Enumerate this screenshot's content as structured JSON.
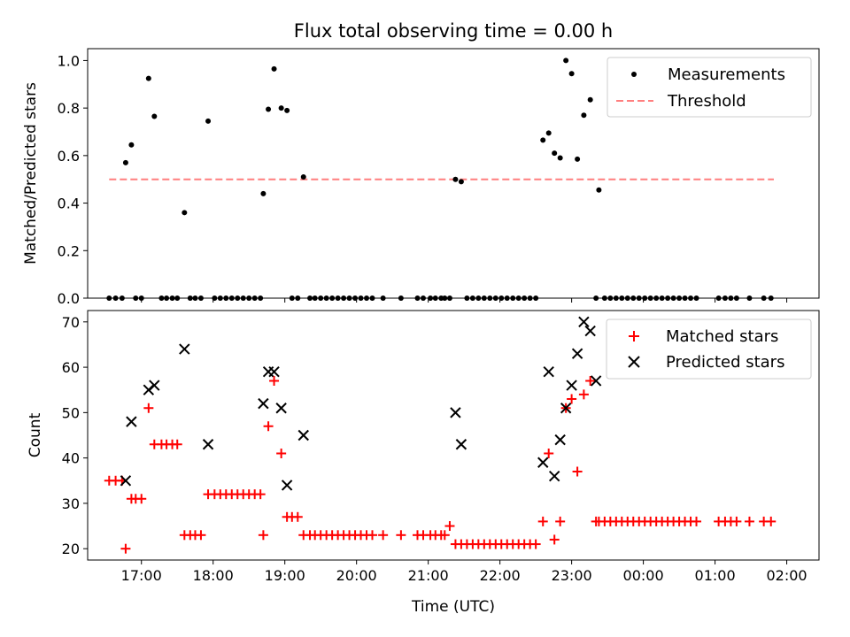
{
  "title": "Flux total observing time = 0.00 h",
  "xlabel": "Time (UTC)",
  "colors": {
    "measurement": "#000000",
    "threshold": "#ff7f7f",
    "matched": "#ff0000",
    "predicted": "#000000"
  },
  "chart_data": [
    {
      "type": "scatter",
      "name": "ratio-panel",
      "ylabel": "Matched/Predicted stars",
      "xlim": [
        16.25,
        26.45
      ],
      "ylim": [
        0,
        1.05
      ],
      "yticks": [
        0.0,
        0.2,
        0.4,
        0.6,
        0.8,
        1.0
      ],
      "ytick_labels": [
        "0.0",
        "0.2",
        "0.4",
        "0.6",
        "0.8",
        "1.0"
      ],
      "legend": [
        "Measurements",
        "Threshold"
      ],
      "legend_position": "top-right",
      "threshold": {
        "y": 0.5,
        "x": [
          16.55,
          25.82
        ]
      },
      "measurements": {
        "x": [
          16.55,
          16.64,
          16.73,
          16.78,
          16.86,
          16.92,
          17.0,
          17.1,
          17.18,
          17.28,
          17.35,
          17.43,
          17.5,
          17.6,
          17.68,
          17.75,
          17.83,
          17.93,
          18.02,
          18.1,
          18.18,
          18.26,
          18.34,
          18.42,
          18.5,
          18.58,
          18.66,
          18.7,
          18.77,
          18.85,
          18.95,
          19.03,
          19.1,
          19.18,
          19.26,
          19.35,
          19.42,
          19.5,
          19.58,
          19.66,
          19.74,
          19.82,
          19.9,
          19.98,
          20.06,
          20.14,
          20.22,
          20.37,
          20.62,
          20.85,
          20.93,
          21.03,
          21.1,
          21.18,
          21.23,
          21.3,
          21.38,
          21.46,
          21.54,
          21.62,
          21.7,
          21.78,
          21.86,
          21.94,
          22.02,
          22.1,
          22.18,
          22.26,
          22.34,
          22.42,
          22.5,
          22.6,
          22.68,
          22.76,
          22.84,
          22.92,
          23.0,
          23.08,
          23.17,
          23.26,
          23.34,
          23.38,
          23.46,
          23.54,
          23.62,
          23.7,
          23.78,
          23.86,
          23.94,
          24.02,
          24.1,
          24.18,
          24.26,
          24.34,
          24.42,
          24.5,
          24.58,
          24.66,
          24.74,
          25.05,
          25.14,
          25.22,
          25.3,
          25.48,
          25.68,
          25.78
        ],
        "y": [
          0,
          0,
          0,
          0.57,
          0.645,
          0,
          0,
          0.925,
          0.765,
          0,
          0,
          0,
          0,
          0.36,
          0,
          0,
          0,
          0.745,
          0,
          0,
          0,
          0,
          0,
          0,
          0,
          0,
          0,
          0.44,
          0.795,
          0.965,
          0.8,
          0.79,
          0,
          0,
          0.51,
          0,
          0,
          0,
          0,
          0,
          0,
          0,
          0,
          0,
          0,
          0,
          0,
          0,
          0,
          0,
          0,
          0,
          0,
          0,
          0,
          0,
          0.5,
          0.49,
          0,
          0,
          0,
          0,
          0,
          0,
          0,
          0,
          0,
          0,
          0,
          0,
          0,
          0.665,
          0.695,
          0.61,
          0.59,
          1.0,
          0.945,
          0.585,
          0.77,
          0.835,
          0,
          0.455,
          0,
          0,
          0,
          0,
          0,
          0,
          0,
          0,
          0,
          0,
          0,
          0,
          0,
          0,
          0,
          0,
          0,
          0,
          0,
          0,
          0,
          0,
          0,
          0
        ]
      }
    },
    {
      "type": "scatter",
      "name": "count-panel",
      "ylabel": "Count",
      "xlim": [
        16.25,
        26.45
      ],
      "ylim": [
        17.5,
        72.5
      ],
      "yticks": [
        20,
        30,
        40,
        50,
        60,
        70
      ],
      "ytick_labels": [
        "20",
        "30",
        "40",
        "50",
        "60",
        "70"
      ],
      "xticks": [
        17,
        18,
        19,
        20,
        21,
        22,
        23,
        24,
        25,
        26
      ],
      "xtick_labels": [
        "17:00",
        "18:00",
        "19:00",
        "20:00",
        "21:00",
        "22:00",
        "23:00",
        "00:00",
        "01:00",
        "02:00"
      ],
      "legend": [
        "Matched stars",
        "Predicted stars"
      ],
      "legend_position": "top-right",
      "series": [
        {
          "name": "Matched stars",
          "marker": "plus",
          "x": [
            16.55,
            16.64,
            16.73,
            16.78,
            16.86,
            16.92,
            17.0,
            17.1,
            17.18,
            17.28,
            17.35,
            17.43,
            17.5,
            17.6,
            17.68,
            17.75,
            17.83,
            17.93,
            18.02,
            18.1,
            18.18,
            18.26,
            18.34,
            18.42,
            18.5,
            18.58,
            18.66,
            18.7,
            18.77,
            18.85,
            18.95,
            19.03,
            19.1,
            19.18,
            19.26,
            19.35,
            19.42,
            19.5,
            19.58,
            19.66,
            19.74,
            19.82,
            19.9,
            19.98,
            20.06,
            20.14,
            20.22,
            20.37,
            20.62,
            20.85,
            20.93,
            21.03,
            21.1,
            21.18,
            21.23,
            21.3,
            21.38,
            21.46,
            21.54,
            21.62,
            21.7,
            21.78,
            21.86,
            21.94,
            22.02,
            22.1,
            22.18,
            22.26,
            22.34,
            22.42,
            22.5,
            22.6,
            22.68,
            22.76,
            22.84,
            22.92,
            23.0,
            23.08,
            23.17,
            23.26,
            23.34,
            23.38,
            23.46,
            23.54,
            23.62,
            23.7,
            23.78,
            23.86,
            23.94,
            24.02,
            24.1,
            24.18,
            24.26,
            24.34,
            24.42,
            24.5,
            24.58,
            24.66,
            24.74,
            25.05,
            25.14,
            25.22,
            25.3,
            25.48,
            25.68,
            25.78
          ],
          "y": [
            35,
            35,
            35,
            20,
            31,
            31,
            31,
            51,
            43,
            43,
            43,
            43,
            43,
            23,
            23,
            23,
            23,
            32,
            32,
            32,
            32,
            32,
            32,
            32,
            32,
            32,
            32,
            23,
            47,
            57,
            41,
            27,
            27,
            27,
            23,
            23,
            23,
            23,
            23,
            23,
            23,
            23,
            23,
            23,
            23,
            23,
            23,
            23,
            23,
            23,
            23,
            23,
            23,
            23,
            23,
            25,
            21,
            21,
            21,
            21,
            21,
            21,
            21,
            21,
            21,
            21,
            21,
            21,
            21,
            21,
            21,
            26,
            41,
            22,
            26,
            51,
            53,
            37,
            54,
            57,
            26,
            26,
            26,
            26,
            26,
            26,
            26,
            26,
            26,
            26,
            26,
            26,
            26,
            26,
            26,
            26,
            26,
            26,
            26,
            26,
            26,
            26,
            26,
            26,
            26,
            26
          ]
        },
        {
          "name": "Predicted stars",
          "marker": "x",
          "x": [
            16.78,
            16.86,
            17.1,
            17.18,
            17.6,
            17.93,
            18.7,
            18.77,
            18.85,
            18.95,
            19.03,
            19.26,
            21.38,
            21.46,
            22.6,
            22.68,
            22.76,
            22.84,
            22.92,
            23.0,
            23.08,
            23.17,
            23.26,
            23.34
          ],
          "y": [
            35,
            48,
            55,
            56,
            64,
            43,
            52,
            59,
            59,
            51,
            34,
            45,
            50,
            43,
            39,
            59,
            36,
            44,
            51,
            56,
            63,
            70,
            68,
            57
          ]
        }
      ]
    }
  ]
}
